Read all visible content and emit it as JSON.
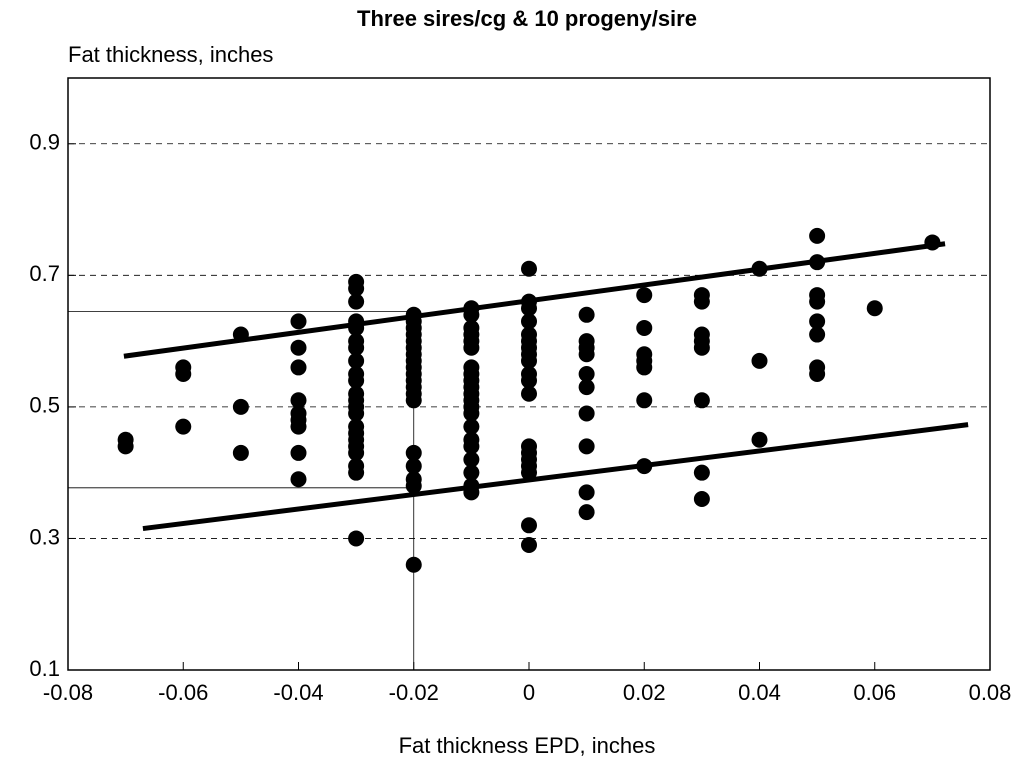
{
  "chart_data": {
    "type": "scatter",
    "title": "Three sires/cg & 10 progeny/sire",
    "y_label": "Fat thickness, inches",
    "x_label": "Fat thickness EPD, inches",
    "xlim": [
      -0.08,
      0.08
    ],
    "xticks": [
      -0.08,
      -0.06,
      -0.04,
      -0.02,
      0,
      0.02,
      0.04,
      0.06,
      0.08
    ],
    "ylim": [
      0.1,
      1.0
    ],
    "yticks": [
      0.1,
      0.3,
      0.5,
      0.7,
      0.9
    ],
    "grid": true,
    "series": [
      {
        "color": "#000000",
        "x": [
          -0.07,
          -0.07,
          -0.06,
          -0.06,
          -0.06,
          -0.05,
          -0.05,
          -0.05,
          -0.04,
          -0.04,
          -0.04,
          -0.04,
          -0.04,
          -0.04,
          -0.04,
          -0.04,
          -0.04,
          -0.03,
          -0.03,
          -0.03,
          -0.03,
          -0.03,
          -0.03,
          -0.03,
          -0.03,
          -0.03,
          -0.03,
          -0.03,
          -0.03,
          -0.03,
          -0.03,
          -0.03,
          -0.03,
          -0.03,
          -0.03,
          -0.03,
          -0.03,
          -0.03,
          -0.03,
          -0.02,
          -0.02,
          -0.02,
          -0.02,
          -0.02,
          -0.02,
          -0.02,
          -0.02,
          -0.02,
          -0.02,
          -0.02,
          -0.02,
          -0.02,
          -0.02,
          -0.02,
          -0.02,
          -0.02,
          -0.02,
          -0.02,
          -0.01,
          -0.01,
          -0.01,
          -0.01,
          -0.01,
          -0.01,
          -0.01,
          -0.01,
          -0.01,
          -0.01,
          -0.01,
          -0.01,
          -0.01,
          -0.01,
          -0.01,
          -0.01,
          -0.01,
          -0.01,
          -0.01,
          -0.01,
          -0.01,
          0,
          0,
          0,
          0,
          0,
          0,
          0,
          0,
          0,
          0,
          0,
          0,
          0,
          0,
          0,
          0,
          0,
          0,
          0,
          0.01,
          0.01,
          0.01,
          0.01,
          0.01,
          0.01,
          0.01,
          0.01,
          0.01,
          0.01,
          0.02,
          0.02,
          0.02,
          0.02,
          0.02,
          0.02,
          0.02,
          0.03,
          0.03,
          0.03,
          0.03,
          0.03,
          0.03,
          0.03,
          0.03,
          0.04,
          0.04,
          0.04,
          0.05,
          0.05,
          0.05,
          0.05,
          0.05,
          0.05,
          0.05,
          0.05,
          0.06,
          0.07
        ],
        "values": [
          0.45,
          0.44,
          0.56,
          0.55,
          0.47,
          0.61,
          0.5,
          0.43,
          0.63,
          0.59,
          0.56,
          0.51,
          0.49,
          0.48,
          0.47,
          0.43,
          0.39,
          0.69,
          0.68,
          0.66,
          0.63,
          0.62,
          0.6,
          0.59,
          0.57,
          0.55,
          0.54,
          0.52,
          0.51,
          0.5,
          0.49,
          0.47,
          0.46,
          0.45,
          0.44,
          0.43,
          0.41,
          0.4,
          0.3,
          0.64,
          0.63,
          0.62,
          0.61,
          0.6,
          0.59,
          0.58,
          0.57,
          0.56,
          0.55,
          0.54,
          0.53,
          0.52,
          0.51,
          0.43,
          0.41,
          0.39,
          0.38,
          0.26,
          0.65,
          0.64,
          0.62,
          0.61,
          0.6,
          0.59,
          0.56,
          0.55,
          0.54,
          0.53,
          0.52,
          0.51,
          0.5,
          0.49,
          0.47,
          0.45,
          0.44,
          0.42,
          0.4,
          0.38,
          0.37,
          0.71,
          0.66,
          0.65,
          0.63,
          0.61,
          0.6,
          0.59,
          0.58,
          0.57,
          0.55,
          0.54,
          0.52,
          0.44,
          0.43,
          0.42,
          0.41,
          0.4,
          0.32,
          0.29,
          0.64,
          0.6,
          0.59,
          0.58,
          0.55,
          0.53,
          0.49,
          0.44,
          0.37,
          0.34,
          0.67,
          0.62,
          0.58,
          0.57,
          0.56,
          0.51,
          0.41,
          0.67,
          0.66,
          0.61,
          0.6,
          0.59,
          0.51,
          0.4,
          0.36,
          0.71,
          0.57,
          0.45,
          0.76,
          0.72,
          0.67,
          0.66,
          0.63,
          0.61,
          0.56,
          0.55,
          0.65,
          0.75
        ]
      }
    ],
    "lines": [
      {
        "color": "#000000",
        "x": [
          -0.0703,
          0.0722
        ],
        "values": [
          0.577,
          0.748
        ]
      },
      {
        "color": "#000000",
        "x": [
          -0.067,
          0.0762
        ],
        "values": [
          0.315,
          0.473
        ]
      }
    ],
    "guides": {
      "x": -0.02,
      "y": [
        0.645,
        0.377
      ]
    }
  }
}
